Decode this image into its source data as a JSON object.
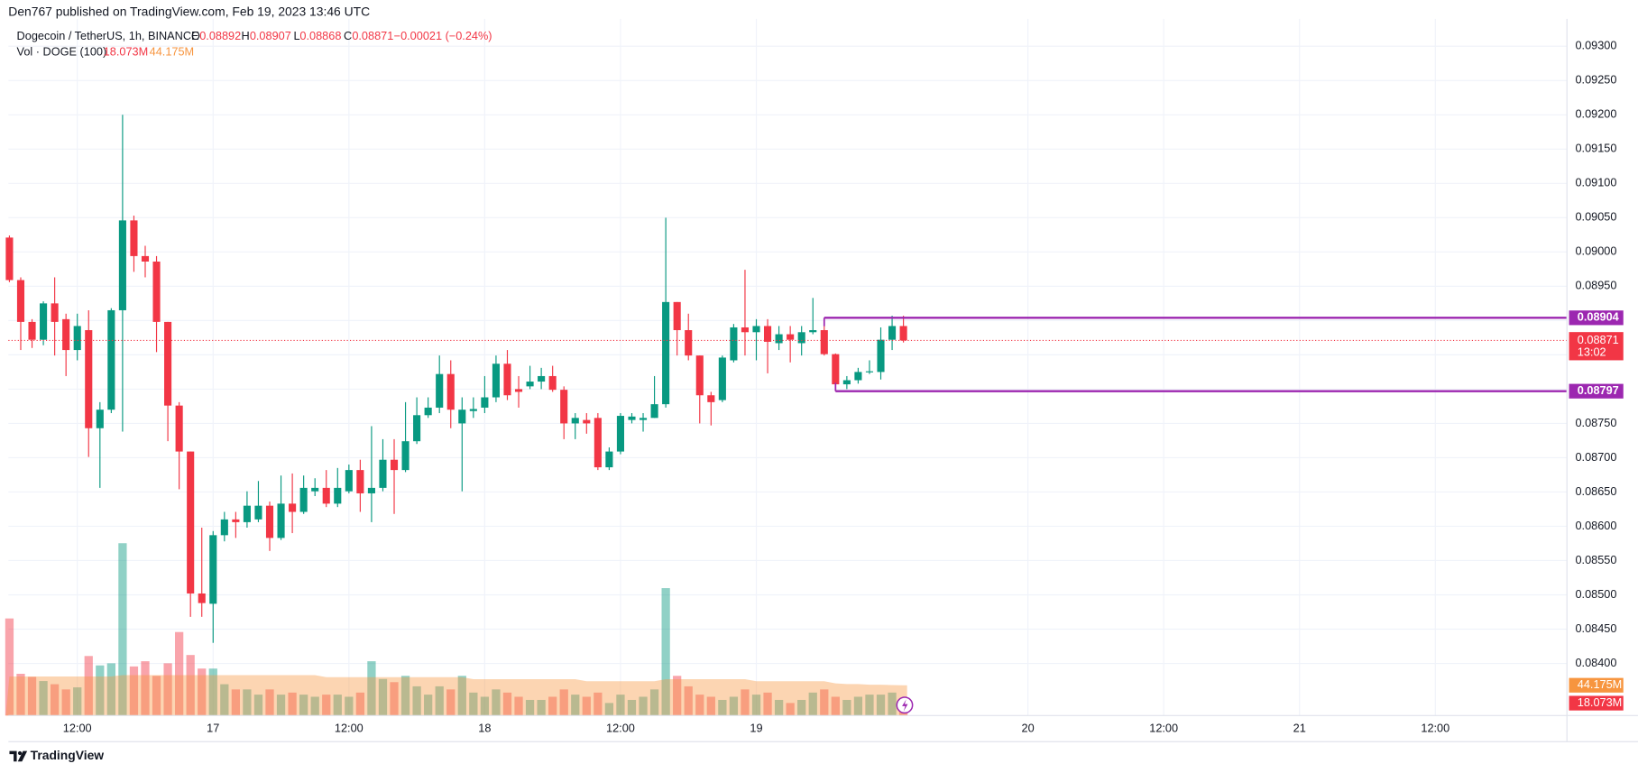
{
  "chart_data": {
    "type": "candlestick",
    "publisher": "Den767 published on TradingView.com, Feb 19, 2023 13:46 UTC",
    "title": "Dogecoin / TetherUS, 1h, BINANCE",
    "ohlc_keys": [
      "O",
      "H",
      "L",
      "C"
    ],
    "change": "−0.00021 (−0.24%)",
    "volume_title": "Vol · DOGE (100)",
    "up_color": "#089981",
    "down_color": "#f23645",
    "volume_ma_color": "#f7953f",
    "level_color": "#9c27b0",
    "grid": true,
    "xlim": [
      -0.09,
      137.63
    ],
    "ylim": [
      0.08324,
      0.0934
    ],
    "y2lim": [
      0,
      1016
    ],
    "xticks": [
      {
        "value": 6,
        "label": "12:00"
      },
      {
        "value": 18,
        "label": "17"
      },
      {
        "value": 30,
        "label": "12:00"
      },
      {
        "value": 42,
        "label": "18"
      },
      {
        "value": 54,
        "label": "12:00"
      },
      {
        "value": 66,
        "label": "19"
      },
      {
        "value": 90,
        "label": "20"
      },
      {
        "value": 102,
        "label": "12:00"
      },
      {
        "value": 114,
        "label": "21"
      },
      {
        "value": 126,
        "label": "12:00"
      }
    ],
    "yticks": [
      {
        "value": 0.084,
        "label": "0.08400"
      },
      {
        "value": 0.0845,
        "label": "0.08450"
      },
      {
        "value": 0.085,
        "label": "0.08500"
      },
      {
        "value": 0.0855,
        "label": "0.08550"
      },
      {
        "value": 0.086,
        "label": "0.08600"
      },
      {
        "value": 0.0865,
        "label": "0.08650"
      },
      {
        "value": 0.087,
        "label": "0.08700"
      },
      {
        "value": 0.0875,
        "label": "0.08750"
      },
      {
        "value": 0.088,
        "label": "0.08800"
      },
      {
        "value": 0.0885,
        "label": "0.08850"
      },
      {
        "value": 0.089,
        "label": "0.08900"
      },
      {
        "value": 0.0895,
        "label": "0.08950"
      },
      {
        "value": 0.09,
        "label": "0.09000"
      },
      {
        "value": 0.0905,
        "label": "0.09050"
      },
      {
        "value": 0.091,
        "label": "0.09100"
      },
      {
        "value": 0.0915,
        "label": "0.09150"
      },
      {
        "value": 0.092,
        "label": "0.09200"
      },
      {
        "value": 0.0925,
        "label": "0.09250"
      },
      {
        "value": 0.093,
        "label": "0.09300"
      }
    ],
    "open": [
      0.09021,
      0.08959,
      0.08898,
      0.08872,
      0.08925,
      0.08902,
      0.08857,
      0.08886,
      0.08743,
      0.0877,
      0.08915,
      0.09046,
      0.08994,
      0.08986,
      0.08898,
      0.08776,
      0.08709,
      0.08502,
      0.08487,
      0.08587,
      0.0861,
      0.08606,
      0.0861,
      0.0863,
      0.08583,
      0.08633,
      0.08621,
      0.08651,
      0.08656,
      0.08633,
      0.08651,
      0.08682,
      0.08648,
      0.08656,
      0.08697,
      0.08682,
      0.08724,
      0.08762,
      0.08773,
      0.08822,
      0.0875,
      0.08768,
      0.08773,
      0.08788,
      0.08837,
      0.088,
      0.08804,
      0.08811,
      0.08819,
      0.08799,
      0.0875,
      0.08755,
      0.08758,
      0.08686,
      0.08709,
      0.08755,
      0.08755,
      0.08758,
      0.08778,
      0.08927,
      0.08886,
      0.08849,
      0.08791,
      0.08784,
      0.08842,
      0.0889,
      0.08883,
      0.08892,
      0.08867,
      0.0888,
      0.08867,
      0.08883,
      0.08886,
      0.08851,
      0.08807,
      0.08813,
      0.08825,
      0.08825,
      0.08872,
      0.08892
    ],
    "high": [
      0.09024,
      0.08963,
      0.08902,
      0.08928,
      0.08963,
      0.0891,
      0.0891,
      0.08915,
      0.08781,
      0.08918,
      0.092,
      0.09053,
      0.09009,
      0.08994,
      0.08898,
      0.08781,
      0.08709,
      0.08598,
      0.08593,
      0.08621,
      0.08621,
      0.08651,
      0.08666,
      0.08636,
      0.08674,
      0.08677,
      0.08674,
      0.0867,
      0.08682,
      0.08685,
      0.0869,
      0.08697,
      0.08746,
      0.08727,
      0.08727,
      0.08781,
      0.08788,
      0.08788,
      0.08849,
      0.08842,
      0.08788,
      0.08788,
      0.08819,
      0.08849,
      0.08857,
      0.08819,
      0.08834,
      0.08831,
      0.08834,
      0.08804,
      0.08765,
      0.08765,
      0.08765,
      0.08715,
      0.08765,
      0.08765,
      0.08765,
      0.08819,
      0.0905,
      0.08927,
      0.0891,
      0.08849,
      0.08796,
      0.08849,
      0.08895,
      0.08974,
      0.08902,
      0.08902,
      0.08892,
      0.08892,
      0.08892,
      0.08933,
      0.08904,
      0.08852,
      0.08819,
      0.08831,
      0.08842,
      0.0889,
      0.08907,
      0.08907
    ],
    "low": [
      0.08956,
      0.08857,
      0.0886,
      0.08864,
      0.08849,
      0.08819,
      0.08842,
      0.08701,
      0.08656,
      0.08765,
      0.08738,
      0.08971,
      0.08963,
      0.08854,
      0.08724,
      0.08654,
      0.08468,
      0.08468,
      0.0843,
      0.08578,
      0.08583,
      0.08598,
      0.08606,
      0.08564,
      0.0858,
      0.0859,
      0.08618,
      0.08644,
      0.08628,
      0.08628,
      0.08648,
      0.08621,
      0.08606,
      0.08651,
      0.08618,
      0.08679,
      0.0872,
      0.08758,
      0.08765,
      0.08743,
      0.08651,
      0.08758,
      0.08765,
      0.08781,
      0.08784,
      0.08773,
      0.088,
      0.088,
      0.08796,
      0.08727,
      0.08727,
      0.08735,
      0.08682,
      0.08682,
      0.08705,
      0.0875,
      0.08738,
      0.08758,
      0.08773,
      0.08849,
      0.08842,
      0.0875,
      0.08747,
      0.08781,
      0.08839,
      0.08849,
      0.08842,
      0.08823,
      0.08857,
      0.08839,
      0.08849,
      0.0888,
      0.08849,
      0.08797,
      0.088,
      0.08808,
      0.08822,
      0.08814,
      0.08857,
      0.08868
    ],
    "close": [
      0.08959,
      0.08898,
      0.08872,
      0.08925,
      0.08898,
      0.08857,
      0.08892,
      0.08743,
      0.0877,
      0.08915,
      0.09046,
      0.08994,
      0.08986,
      0.08898,
      0.08776,
      0.08709,
      0.08502,
      0.08488,
      0.08587,
      0.0861,
      0.08606,
      0.0863,
      0.0863,
      0.08583,
      0.08633,
      0.08621,
      0.08656,
      0.08656,
      0.08633,
      0.08656,
      0.08682,
      0.08648,
      0.08656,
      0.08697,
      0.08682,
      0.08724,
      0.08762,
      0.08773,
      0.08822,
      0.0877,
      0.0877,
      0.08771,
      0.08788,
      0.08837,
      0.08791,
      0.08796,
      0.08811,
      0.08819,
      0.08799,
      0.0875,
      0.08758,
      0.0875,
      0.08686,
      0.08709,
      0.08761,
      0.0876,
      0.08758,
      0.08778,
      0.08927,
      0.08886,
      0.08849,
      0.08791,
      0.08781,
      0.08846,
      0.0889,
      0.08883,
      0.08892,
      0.08869,
      0.0888,
      0.08872,
      0.08883,
      0.08886,
      0.08851,
      0.08807,
      0.08813,
      0.08825,
      0.08826,
      0.08872,
      0.08892,
      0.08871
    ],
    "volume": [
      141.6,
      60.9,
      56.4,
      50.3,
      45.7,
      38.1,
      41.1,
      86.8,
      73.1,
      76.2,
      251.3,
      71.6,
      79.2,
      57.9,
      76.2,
      121.8,
      88.3,
      68.5,
      68.5,
      45.7,
      38.1,
      38.1,
      30.5,
      38.1,
      30.5,
      33.5,
      30.5,
      27.4,
      30.5,
      30.5,
      27.4,
      33.5,
      79.2,
      53.3,
      48.7,
      57.9,
      42.6,
      30.5,
      42.6,
      38.1,
      57.9,
      33.5,
      27.4,
      38.1,
      33.5,
      27.4,
      22.8,
      22.8,
      27.4,
      38.1,
      30.5,
      27.4,
      33.5,
      18.3,
      30.5,
      22.8,
      27.4,
      38.1,
      185.8,
      57.9,
      42.6,
      30.5,
      27.4,
      22.8,
      27.4,
      38.1,
      30.5,
      33.5,
      22.8,
      18.3,
      22.8,
      33.5,
      38.1,
      27.4,
      22.8,
      27.4,
      30.5,
      30.5,
      33.5,
      18.073
    ],
    "volume_ma": [
      57,
      57,
      57,
      57,
      57,
      57,
      57,
      57,
      57,
      57,
      59,
      59,
      59,
      59,
      59,
      59,
      59,
      59,
      59,
      59,
      59,
      59,
      59,
      59,
      59,
      59,
      59,
      59,
      56,
      56,
      56,
      56,
      56,
      56,
      56,
      56,
      56,
      56,
      56,
      56,
      56,
      53,
      53,
      53,
      53,
      53,
      53,
      53,
      53,
      53,
      53,
      50,
      50,
      50,
      50,
      50,
      50,
      50,
      53,
      53,
      53,
      53,
      53,
      53,
      53,
      53,
      50,
      50,
      50,
      50,
      50,
      50,
      50,
      47,
      46,
      46,
      45,
      45,
      44.5,
      44.175
    ],
    "volume_last_label": "18.073M",
    "volume_ma_last_label": "44.175M",
    "countdown": "13:02",
    "levels": [
      {
        "value": 0.08904,
        "label": "0.08904",
        "start": 72
      },
      {
        "value": 0.08797,
        "label": "0.08797",
        "start": 73
      }
    ]
  },
  "brand": "TradingView"
}
